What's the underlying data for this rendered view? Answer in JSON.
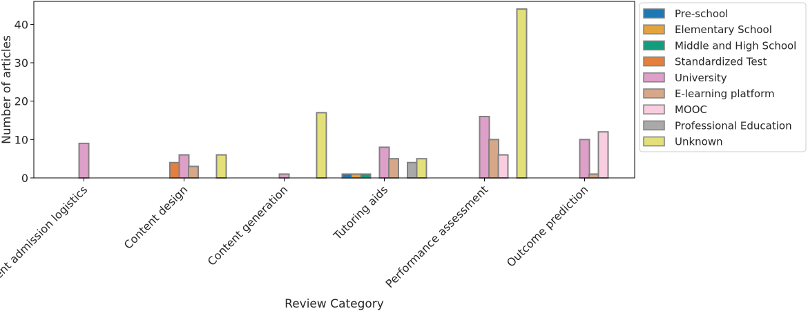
{
  "chart_data": {
    "type": "bar",
    "title": "",
    "xlabel": "Review Category",
    "ylabel": "Number of articles",
    "ylim": [
      0,
      46
    ],
    "yticks": [
      0,
      10,
      20,
      30,
      40
    ],
    "grid": false,
    "legend_position": "outside-right",
    "bar_edge_color": "#808080",
    "categories": [
      "Student admission logistics",
      "Content design",
      "Content generation",
      "Tutoring aids",
      "Performance assessment",
      "Outcome prediction"
    ],
    "series": [
      {
        "name": "Pre-school",
        "color": "#1f77b4",
        "values": [
          0,
          0,
          0,
          1,
          0,
          0
        ]
      },
      {
        "name": "Elementary School",
        "color": "#e3a43f",
        "values": [
          0,
          0,
          0,
          1,
          0,
          0
        ]
      },
      {
        "name": "Middle and High School",
        "color": "#129e7c",
        "values": [
          0,
          0,
          0,
          1,
          0,
          0
        ]
      },
      {
        "name": "Standardized Test",
        "color": "#e47f3e",
        "values": [
          0,
          4,
          0,
          0,
          0,
          0
        ]
      },
      {
        "name": "University",
        "color": "#de9fc8",
        "values": [
          9,
          6,
          1,
          8,
          16,
          10
        ]
      },
      {
        "name": "E-learning platform",
        "color": "#d6a788",
        "values": [
          0,
          3,
          0,
          5,
          10,
          1
        ]
      },
      {
        "name": "MOOC",
        "color": "#f8cde0",
        "values": [
          0,
          0,
          0,
          0,
          6,
          12
        ]
      },
      {
        "name": "Professional Education",
        "color": "#a9a9a9",
        "values": [
          0,
          0,
          0,
          4,
          0,
          0
        ]
      },
      {
        "name": "Unknown",
        "color": "#e3e07a",
        "values": [
          0,
          6,
          17,
          5,
          44,
          0
        ]
      }
    ]
  }
}
